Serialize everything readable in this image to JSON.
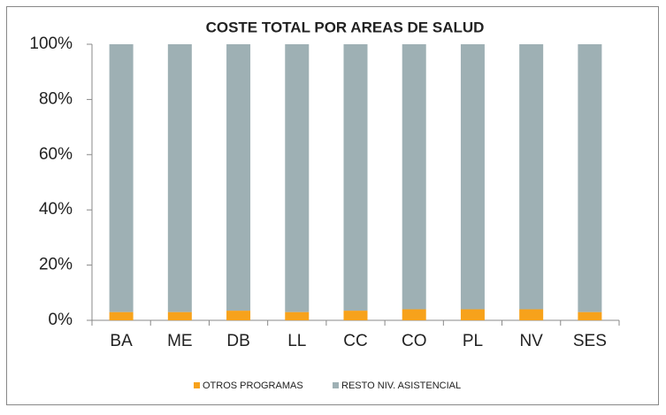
{
  "chart_data": {
    "type": "stacked_bar",
    "title": "COSTE TOTAL POR AREAS DE SALUD",
    "categories": [
      "BA",
      "ME",
      "DB",
      "LL",
      "CC",
      "CO",
      "PL",
      "NV",
      "SES"
    ],
    "series": [
      {
        "name": "OTROS PROGRAMAS",
        "color": "#f7a21b",
        "values": [
          3,
          3,
          3.5,
          3,
          3.5,
          4,
          4,
          4,
          3
        ]
      },
      {
        "name": "RESTO NIV. ASISTENCIAL",
        "color": "#9eb0b4",
        "values": [
          97,
          97,
          96.5,
          97,
          96.5,
          96,
          96,
          96,
          97
        ]
      }
    ],
    "ylim": [
      0,
      100
    ],
    "yticks": [
      {
        "value": 0,
        "label": "0%"
      },
      {
        "value": 20,
        "label": "20%"
      },
      {
        "value": 40,
        "label": "40%"
      },
      {
        "value": 60,
        "label": "60%"
      },
      {
        "value": 80,
        "label": "80%"
      },
      {
        "value": 100,
        "label": "100%"
      }
    ],
    "legend": "bottom"
  }
}
